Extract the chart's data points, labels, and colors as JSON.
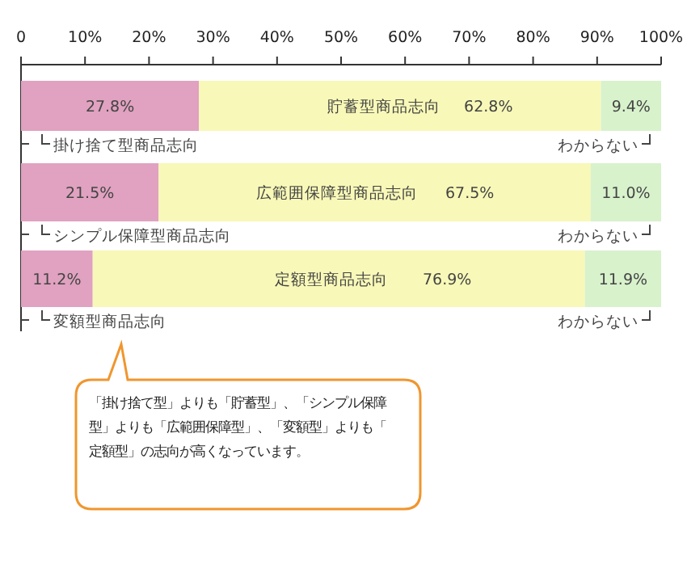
{
  "chart_data": {
    "type": "bar",
    "orientation": "horizontal",
    "stacked": true,
    "categories": [
      null,
      null,
      null
    ],
    "xlim": [
      0,
      100
    ],
    "xticks": [
      {
        "value": 0,
        "label": "0"
      },
      {
        "value": 10,
        "label": "10%"
      },
      {
        "value": 20,
        "label": "20%"
      },
      {
        "value": 30,
        "label": "30%"
      },
      {
        "value": 40,
        "label": "40%"
      },
      {
        "value": 50,
        "label": "50%"
      },
      {
        "value": 60,
        "label": "60%"
      },
      {
        "value": 70,
        "label": "70%"
      },
      {
        "value": 80,
        "label": "80%"
      },
      {
        "value": 90,
        "label": "90%"
      },
      {
        "value": 100,
        "label": "100%"
      }
    ],
    "grid": false,
    "series": [
      {
        "color": "#e0a2c0",
        "values": [
          27.8,
          21.5,
          11.2
        ],
        "value_labels": [
          "27.8%",
          "21.5%",
          "11.2%"
        ]
      },
      {
        "color": "#f8f8b8",
        "values": [
          62.8,
          67.5,
          76.9
        ],
        "value_labels": [
          "62.8%",
          "67.5%",
          "76.9%"
        ]
      },
      {
        "color": "#d8f2cc",
        "values": [
          9.4,
          11.0,
          11.9
        ],
        "value_labels": [
          "9.4%",
          "11.0%",
          "11.9%"
        ]
      }
    ],
    "annotations": [
      "貯蓄型商品志向",
      "掛け捨て型商品志向",
      "わからない",
      "広範囲保障型商品志向",
      "シンプル保障型商品志向",
      "わからない",
      "定額型商品志向",
      "変額型商品志向",
      "わからない",
      "「掛け捨て型」よりも「貯蓄型」、「シンプル保障型」よりも「広範囲保障型」、「変額型」よりも「定額型」の志向が高くなっています。"
    ]
  }
}
